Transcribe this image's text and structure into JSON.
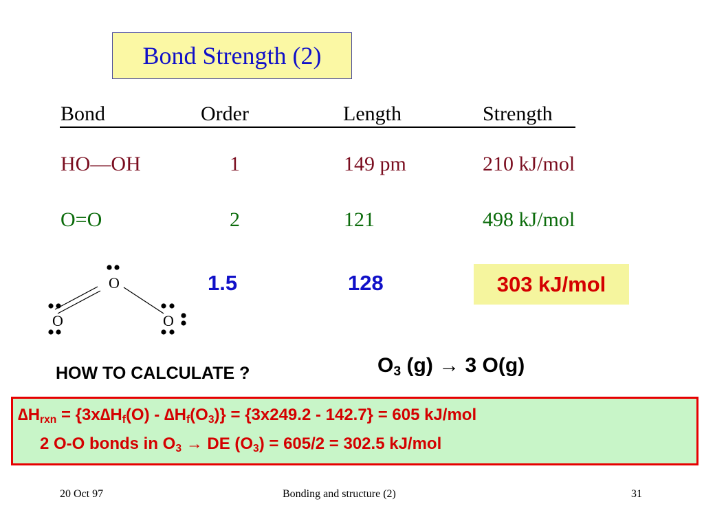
{
  "title": "Bond Strength (2)",
  "headers": [
    "Bond",
    "Order",
    "Length",
    "Strength"
  ],
  "rows": [
    {
      "bond": "HO—OH",
      "order": "1",
      "length": "149 pm",
      "strength": "210 kJ/mol"
    },
    {
      "bond": "O=O",
      "order": "2",
      "length": "121",
      "strength": "498 kJ/mol"
    }
  ],
  "ozone": {
    "atom_label": "O",
    "order": "1.5",
    "length": "128",
    "strength": "303 kJ/mol"
  },
  "question": "HOW TO CALCULATE ?",
  "reaction": {
    "reactant": "O",
    "reactant_sub": "3",
    "reactant_state": " (g) ",
    "arrow": "→",
    "product": " 3 O(g)"
  },
  "calc": {
    "line1": {
      "delta": "∆",
      "H": "H",
      "rxn": "rxn",
      "eq1": " = {3x",
      "Hf_a": "H",
      "f": "f",
      "part_o": "(O) - ",
      "Hf_b": "H",
      "o3_open": "(O",
      "three": "3",
      "rest": ")} = {3x249.2 - 142.7} = 605 kJ/mol"
    },
    "line2": {
      "a": "2 O-O bonds in O",
      "a_sub": "3",
      "arrow": " → ",
      "b": " DE (O",
      "b_sub": "3",
      "c": ") = 605/2 = 302.5 kJ/mol"
    }
  },
  "footer": {
    "left": "20 Oct 97",
    "center": "Bonding and structure (2)",
    "right": "31"
  },
  "colors": {
    "title_bg": "#fbf8a4",
    "title_text": "#1010c8",
    "row1": "#7a0d1f",
    "row2": "#0b6b0b",
    "ozone_values": "#1010c8",
    "highlight_bg": "#f5f59e",
    "highlight_text": "#d40000",
    "calc_bg": "#c8f5c8",
    "calc_border": "#e60000"
  }
}
